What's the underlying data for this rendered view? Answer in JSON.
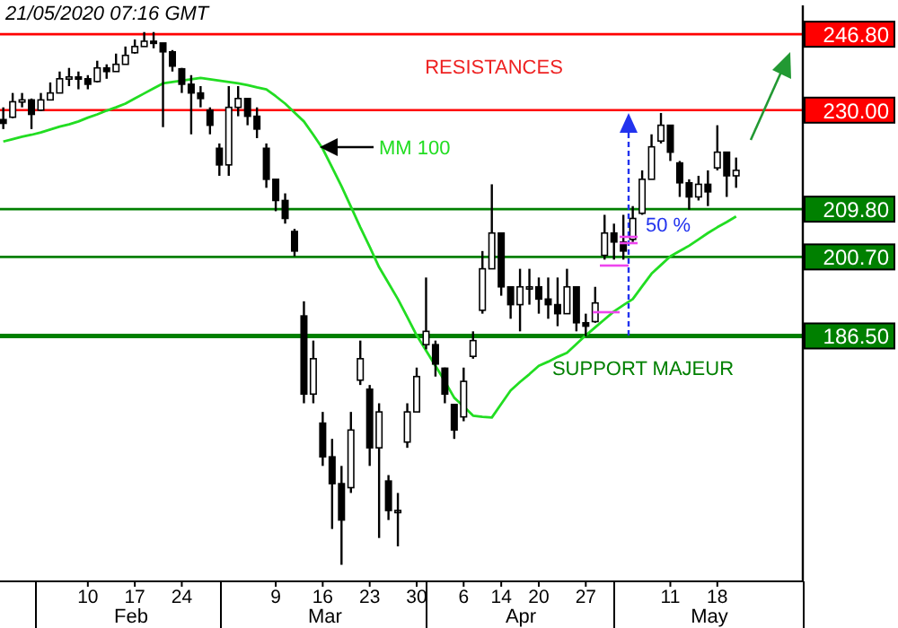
{
  "chart_data": {
    "type": "candlestick",
    "log": true,
    "ylim": [
      148.5,
      253.5
    ],
    "yticks": [
      {
        "value": 186.5,
        "label": "186.50"
      },
      {
        "value": 200.7,
        "label": "200.70"
      },
      {
        "value": 209.8,
        "label": "209.80"
      },
      {
        "value": 230,
        "label": "230.00"
      },
      {
        "value": 246.8,
        "label": "246.80"
      }
    ],
    "categories": [
      null,
      null,
      null,
      null,
      null,
      null,
      null,
      null,
      null,
      "10",
      null,
      null,
      null,
      null,
      "17",
      null,
      null,
      null,
      null,
      "24",
      null,
      null,
      null,
      null,
      null,
      null,
      null,
      null,
      null,
      "9",
      null,
      null,
      null,
      null,
      "16",
      null,
      null,
      null,
      null,
      "23",
      null,
      null,
      null,
      null,
      "30",
      null,
      null,
      null,
      null,
      "6",
      null,
      null,
      null,
      "14",
      null,
      null,
      null,
      "20",
      null,
      null,
      null,
      null,
      "27",
      null,
      null,
      null,
      null,
      null,
      null,
      null,
      null,
      "11",
      null,
      null,
      null,
      null,
      "18",
      null,
      null
    ],
    "ohlc": [
      [
        228,
        230.6,
        226,
        227.2
      ],
      [
        228.5,
        233.7,
        228.3,
        231.8
      ],
      [
        231.8,
        233.7,
        230.6,
        232.2
      ],
      [
        232.2,
        232.5,
        226,
        229.1
      ],
      [
        230,
        233.7,
        229.8,
        232.2
      ],
      [
        232.2,
        236,
        232.2,
        233.7
      ],
      [
        233.7,
        238.4,
        233.7,
        236.8
      ],
      [
        236.8,
        239.2,
        235.2,
        237.2
      ],
      [
        237.2,
        238.4,
        234.5,
        236.8
      ],
      [
        236.8,
        237.6,
        234.5,
        235.6
      ],
      [
        236.2,
        240.8,
        236,
        239.2
      ],
      [
        239.2,
        240,
        236.8,
        238.4
      ],
      [
        238.4,
        242.4,
        238.4,
        240
      ],
      [
        240,
        244,
        240,
        242
      ],
      [
        242.6,
        245.6,
        242.4,
        244
      ],
      [
        244,
        247.3,
        244,
        245.2
      ],
      [
        245.2,
        247.3,
        243.6,
        244.8
      ],
      [
        244.8,
        244.8,
        226.4,
        242.8
      ],
      [
        242.8,
        243.2,
        238.4,
        239.6
      ],
      [
        239,
        239.2,
        233.7,
        235.6
      ],
      [
        235.6,
        237.6,
        224.9,
        233.7
      ],
      [
        233.7,
        235.2,
        230.6,
        232.5
      ],
      [
        230,
        230.6,
        224.9,
        226.8
      ],
      [
        222,
        223,
        216.4,
        218.6
      ],
      [
        218.6,
        235.2,
        216.4,
        230.6
      ],
      [
        230.6,
        235.2,
        228.7,
        232.5
      ],
      [
        232.5,
        232.5,
        226.8,
        228.7
      ],
      [
        228.7,
        230.6,
        224.1,
        226
      ],
      [
        222,
        223,
        214,
        215.7
      ],
      [
        215.7,
        215.7,
        209.4,
        211.5
      ],
      [
        211.5,
        212.9,
        207,
        208
      ],
      [
        205.5,
        206,
        200.8,
        201.8
      ],
      [
        190,
        192.6,
        175.2,
        176.7
      ],
      [
        176.7,
        185.7,
        175.2,
        182.6
      ],
      [
        172,
        173.8,
        165.3,
        166.7
      ],
      [
        166.7,
        169.5,
        155.9,
        162.6
      ],
      [
        162.6,
        165.3,
        150.8,
        157.2
      ],
      [
        162,
        173.8,
        161.2,
        170.9
      ],
      [
        179,
        185.7,
        178.2,
        182.6
      ],
      [
        177.5,
        178.2,
        165.3,
        168.1
      ],
      [
        168.1,
        175.2,
        154.6,
        173.8
      ],
      [
        163,
        163.9,
        157.2,
        158.6
      ],
      [
        158.6,
        161.2,
        153.4,
        158.6
      ],
      [
        169,
        175.2,
        168.1,
        173.8
      ],
      [
        173.8,
        181.1,
        173.8,
        179.6
      ],
      [
        185,
        196.9,
        184.2,
        187.3
      ],
      [
        185,
        185.7,
        179.6,
        181.7
      ],
      [
        181,
        181.1,
        175.2,
        176.7
      ],
      [
        175,
        175,
        169.5,
        170.9
      ],
      [
        173,
        181.1,
        172.3,
        178.8
      ],
      [
        183,
        187.3,
        182.6,
        185.7
      ],
      [
        191,
        201.8,
        190.4,
        198.5
      ],
      [
        198.5,
        214.7,
        198.5,
        205.2
      ],
      [
        205.2,
        205.2,
        193.6,
        195.2
      ],
      [
        195.2,
        195.2,
        189.5,
        192
      ],
      [
        192,
        198.5,
        187.3,
        195.2
      ],
      [
        195.2,
        198.5,
        192,
        195.2
      ],
      [
        195.2,
        196.9,
        190.4,
        193
      ],
      [
        193,
        196.9,
        189.5,
        192
      ],
      [
        192,
        196.9,
        188.2,
        190.4
      ],
      [
        190.4,
        198.5,
        190.4,
        195.2
      ],
      [
        195.2,
        195.2,
        187.3,
        188.8
      ],
      [
        188.8,
        190.4,
        186.4,
        188.2
      ],
      [
        189,
        195.2,
        188.8,
        192.3
      ],
      [
        201,
        208.7,
        200.2,
        205.2
      ],
      [
        205.2,
        207,
        200.2,
        203.5
      ],
      [
        203.5,
        208.7,
        200.2,
        201.8
      ],
      [
        204,
        210.4,
        203.5,
        208
      ],
      [
        209,
        217.5,
        208.7,
        215.7
      ],
      [
        215.7,
        224.9,
        215.7,
        222.3
      ],
      [
        223.5,
        229.4,
        223,
        226.8
      ],
      [
        226.8,
        226.8,
        219.4,
        221.2
      ],
      [
        219,
        219.4,
        212.2,
        215
      ],
      [
        215,
        215.7,
        209.7,
        212.2
      ],
      [
        212.2,
        216.4,
        211.5,
        214.7
      ],
      [
        214.7,
        217.5,
        210.4,
        213.2
      ],
      [
        218,
        226.8,
        217.5,
        221.2
      ],
      [
        221.2,
        221.2,
        212.2,
        216.4
      ],
      [
        216.4,
        220.1,
        214,
        217.5
      ]
    ],
    "series": [
      {
        "type": "line",
        "name": "MM 100",
        "color": "#22dd22",
        "values": [
          223.4,
          223.9,
          224.4,
          224.8,
          225.3,
          225.9,
          226.5,
          227,
          227.6,
          228.4,
          229.1,
          229.9,
          230.6,
          231.4,
          232.5,
          233.6,
          234.7,
          235.8,
          236.1,
          236.4,
          236.7,
          237,
          236.7,
          236.4,
          236.1,
          235.8,
          235.4,
          234.9,
          234.5,
          233,
          231.4,
          229.5,
          227.6,
          224.8,
          221.9,
          218.1,
          214.3,
          210.3,
          206.3,
          202.6,
          198.8,
          195.9,
          193,
          189.8,
          186.6,
          184,
          181.4,
          178.8,
          176.1,
          174.7,
          173.2,
          173,
          172.9,
          175.1,
          177.3,
          178.7,
          180,
          181.4,
          182.1,
          182.9,
          183.6,
          185.1,
          186.6,
          188,
          189.4,
          190.8,
          191.9,
          193,
          195.3,
          197.6,
          199.2,
          200.8,
          201.8,
          202.8,
          204,
          205.2,
          206.3,
          207.3,
          208.4
        ]
      }
    ],
    "ref_lines": [
      {
        "axis": "y",
        "value": 246.8,
        "color": "#ff0000"
      },
      {
        "axis": "y",
        "value": 230,
        "color": "#ff0000"
      },
      {
        "axis": "y",
        "value": 209.8,
        "color": "#008000"
      },
      {
        "axis": "y",
        "value": 200.7,
        "color": "#008000"
      },
      {
        "axis": "y",
        "value": 186.5,
        "color": "#008000"
      }
    ],
    "annotations": [
      "21/05/2020 07:16 GMT",
      "RESISTANCES",
      "SUPPORT MAJEUR",
      "50 %",
      "Feb",
      "Mar",
      "Apr",
      "May"
    ]
  }
}
